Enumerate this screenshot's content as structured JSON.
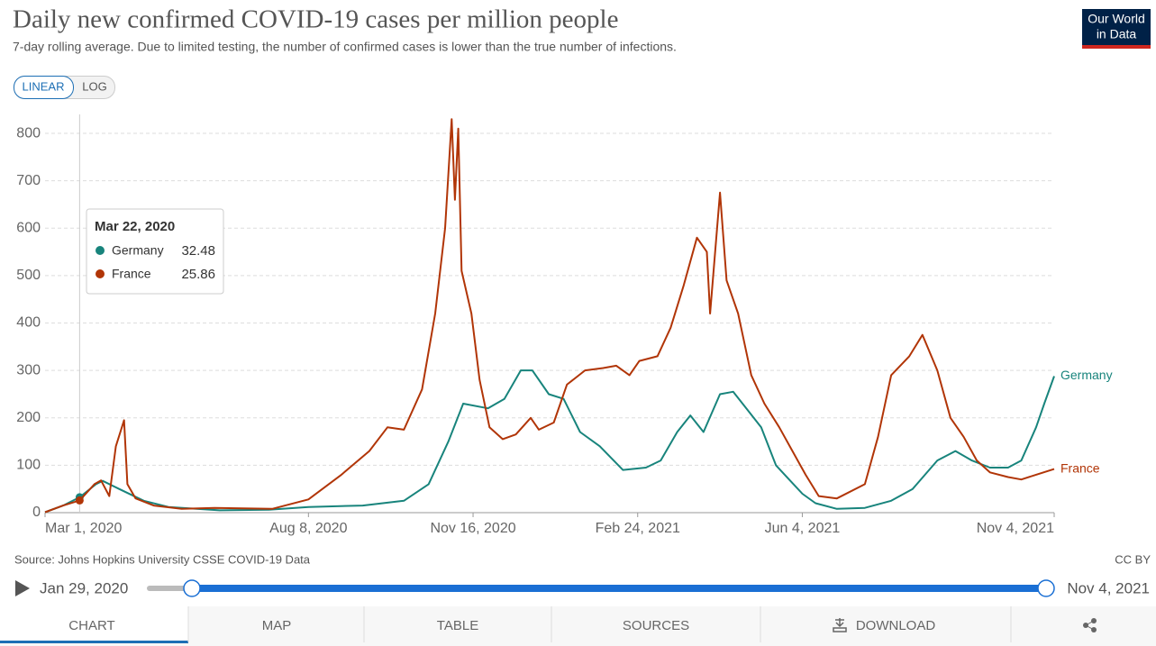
{
  "header": {
    "title": "Daily new confirmed COVID-19 cases per million people",
    "subtitle": "7-day rolling average. Due to limited testing, the number of confirmed cases is lower than the true number of infections.",
    "logo": [
      "Our World",
      "in Data"
    ],
    "buttons": [
      "LINEAR",
      "LOG"
    ]
  },
  "chart_data": {
    "type": "line",
    "xlim": [
      "2020-03-01",
      "2021-11-04"
    ],
    "xticks": [
      {
        "value": "2020-03-01",
        "label": "Mar 1, 2020"
      },
      {
        "value": "2020-08-08",
        "label": "Aug 8, 2020"
      },
      {
        "value": "2020-11-16",
        "label": "Nov 16, 2020"
      },
      {
        "value": "2021-02-24",
        "label": "Feb 24, 2021"
      },
      {
        "value": "2021-06-04",
        "label": "Jun 4, 2021"
      },
      {
        "value": "2021-11-04",
        "label": "Nov 4, 2021"
      }
    ],
    "ylim": [
      0,
      840
    ],
    "yticks": [
      0,
      100,
      200,
      300,
      400,
      500,
      600,
      700,
      800
    ],
    "grid": true,
    "series": [
      {
        "name": "Germany",
        "color": "#18847c",
        "x": [
          "2020-03-01",
          "2020-03-12",
          "2020-03-22",
          "2020-04-01",
          "2020-04-05",
          "2020-04-15",
          "2020-04-30",
          "2020-05-15",
          "2020-06-15",
          "2020-07-15",
          "2020-08-08",
          "2020-09-10",
          "2020-10-05",
          "2020-10-20",
          "2020-11-01",
          "2020-11-10",
          "2020-11-25",
          "2020-12-05",
          "2020-12-15",
          "2020-12-22",
          "2021-01-01",
          "2021-01-10",
          "2021-01-20",
          "2021-02-01",
          "2021-02-15",
          "2021-03-01",
          "2021-03-10",
          "2021-03-20",
          "2021-03-28",
          "2021-04-05",
          "2021-04-15",
          "2021-04-23",
          "2021-05-01",
          "2021-05-10",
          "2021-05-19",
          "2021-05-27",
          "2021-06-04",
          "2021-06-12",
          "2021-06-25",
          "2021-07-12",
          "2021-07-28",
          "2021-08-10",
          "2021-08-25",
          "2021-09-05",
          "2021-09-15",
          "2021-09-26",
          "2021-10-07",
          "2021-10-15",
          "2021-10-24",
          "2021-10-29",
          "2021-11-04"
        ],
        "values": [
          1,
          15,
          32.48,
          60,
          67,
          50,
          25,
          12,
          5,
          6,
          12,
          15,
          25,
          60,
          150,
          230,
          220,
          240,
          300,
          300,
          250,
          240,
          170,
          140,
          90,
          95,
          110,
          170,
          205,
          170,
          250,
          255,
          220,
          180,
          100,
          70,
          40,
          20,
          8,
          10,
          25,
          50,
          110,
          130,
          110,
          95,
          95,
          110,
          180,
          230,
          288
        ]
      },
      {
        "name": "France",
        "color": "#b13507",
        "x": [
          "2020-03-01",
          "2020-03-12",
          "2020-03-22",
          "2020-03-31",
          "2020-04-04",
          "2020-04-09",
          "2020-04-13",
          "2020-04-18",
          "2020-04-20",
          "2020-04-25",
          "2020-05-06",
          "2020-05-23",
          "2020-06-12",
          "2020-07-17",
          "2020-08-08",
          "2020-08-28",
          "2020-09-14",
          "2020-09-25",
          "2020-10-05",
          "2020-10-16",
          "2020-10-24",
          "2020-10-30",
          "2020-11-03",
          "2020-11-05",
          "2020-11-07",
          "2020-11-09",
          "2020-11-15",
          "2020-11-20",
          "2020-11-26",
          "2020-12-04",
          "2020-12-12",
          "2020-12-21",
          "2020-12-26",
          "2021-01-04",
          "2021-01-12",
          "2021-01-23",
          "2021-02-03",
          "2021-02-11",
          "2021-02-19",
          "2021-02-25",
          "2021-03-08",
          "2021-03-16",
          "2021-03-24",
          "2021-04-01",
          "2021-04-07",
          "2021-04-09",
          "2021-04-15",
          "2021-04-19",
          "2021-04-26",
          "2021-05-04",
          "2021-05-12",
          "2021-05-21",
          "2021-05-29",
          "2021-06-06",
          "2021-06-14",
          "2021-06-25",
          "2021-07-12",
          "2021-07-20",
          "2021-07-28",
          "2021-08-08",
          "2021-08-16",
          "2021-08-25",
          "2021-09-02",
          "2021-09-10",
          "2021-09-18",
          "2021-09-26",
          "2021-10-07",
          "2021-10-15",
          "2021-10-24",
          "2021-11-04"
        ],
        "values": [
          1,
          15,
          25.86,
          60,
          68,
          35,
          140,
          195,
          60,
          30,
          15,
          8,
          10,
          8,
          28,
          80,
          130,
          180,
          175,
          260,
          420,
          600,
          830,
          660,
          810,
          510,
          420,
          280,
          180,
          155,
          165,
          200,
          175,
          190,
          270,
          300,
          305,
          310,
          290,
          320,
          330,
          390,
          480,
          580,
          550,
          420,
          675,
          490,
          420,
          290,
          230,
          180,
          130,
          80,
          35,
          30,
          60,
          160,
          290,
          330,
          375,
          300,
          200,
          160,
          110,
          85,
          75,
          70,
          80,
          92
        ]
      }
    ],
    "tooltip": {
      "date": {
        "value": "2020-03-22",
        "label": "Mar 22, 2020"
      },
      "values": [
        32.48,
        25.86
      ]
    },
    "source": "Source: Johns Hopkins University CSSE COVID-19 Data",
    "license": "CC BY"
  },
  "timeline": {
    "start": "Jan 29, 2020",
    "end": "Nov 4, 2021"
  },
  "tabs": [
    "CHART",
    "MAP",
    "TABLE",
    "SOURCES",
    "DOWNLOAD"
  ]
}
